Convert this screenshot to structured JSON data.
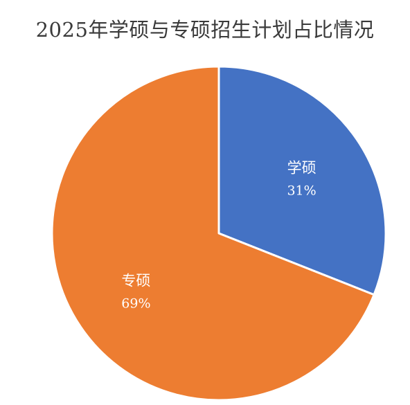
{
  "chart_data": {
    "type": "pie",
    "title": "2025年学硕与专硕招生计划占比情况",
    "slices": [
      {
        "label": "学硕",
        "value": 31,
        "value_label": "31%",
        "color": "#4472C4"
      },
      {
        "label": "专硕",
        "value": 69,
        "value_label": "69%",
        "color": "#ED7D31"
      }
    ],
    "start_angle_deg": 0,
    "direction": "clockwise",
    "legend": "none",
    "slice_border_color": "#ffffff"
  }
}
